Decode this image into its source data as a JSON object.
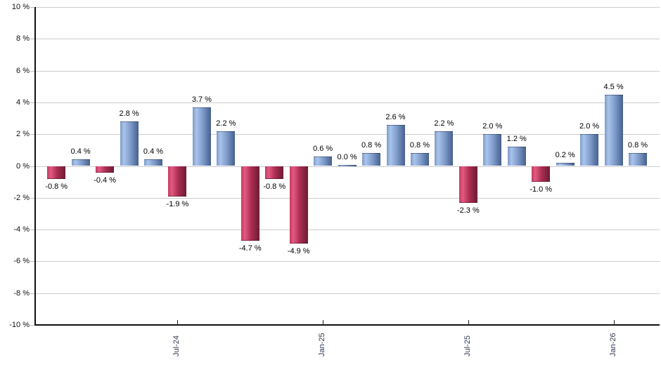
{
  "chart_data": {
    "type": "bar",
    "title": "",
    "xlabel": "",
    "ylabel": "",
    "ylim": [
      -10,
      10
    ],
    "ytick_step": 2,
    "grid": true,
    "legend": false,
    "ytick_labels": [
      "10 %",
      "8 %",
      "6 %",
      "4 %",
      "2 %",
      "0 %",
      "-2 %",
      "-4 %",
      "-6 %",
      "-8 %",
      "-10 %"
    ],
    "ytick_values": [
      10,
      8,
      6,
      4,
      2,
      0,
      -2,
      -4,
      -6,
      -8,
      -10
    ],
    "values": [
      -0.8,
      0.4,
      -0.4,
      2.8,
      0.4,
      -1.9,
      3.7,
      2.2,
      -4.7,
      -0.8,
      -4.9,
      0.6,
      0.0,
      0.8,
      2.6,
      0.8,
      2.2,
      -2.3,
      2.0,
      1.2,
      -1.0,
      0.2,
      2.0,
      4.5,
      0.8
    ],
    "bar_labels": [
      "-0.8 %",
      "0.4 %",
      "-0.4 %",
      "2.8 %",
      "0.4 %",
      "-1.9 %",
      "3.7 %",
      "2.2 %",
      "-4.7 %",
      "-0.8 %",
      "-4.9 %",
      "0.6 %",
      "0.0 %",
      "0.8 %",
      "2.6 %",
      "0.8 %",
      "2.2 %",
      "-2.3 %",
      "2.0 %",
      "1.2 %",
      "-1.0 %",
      "0.2 %",
      "2.0 %",
      "4.5 %",
      "0.8 %"
    ],
    "x_ticks": [
      {
        "index": 5,
        "label": "Jul-24"
      },
      {
        "index": 11,
        "label": "Jan-25"
      },
      {
        "index": 17,
        "label": "Jul-25"
      },
      {
        "index": 23,
        "label": "Jan-26"
      }
    ],
    "colors": {
      "positive_bar": [
        "#7f9bc7",
        "#a9c4ec",
        "#47618d"
      ],
      "negative_bar": [
        "#c43a61",
        "#e25a82",
        "#6e1c35"
      ],
      "gridline": "#cccccc",
      "axis": "#111111",
      "value_label": "#000000",
      "x_tick_label": "#333a52",
      "y_tick_label": "#111111",
      "background": "#ffffff"
    }
  }
}
